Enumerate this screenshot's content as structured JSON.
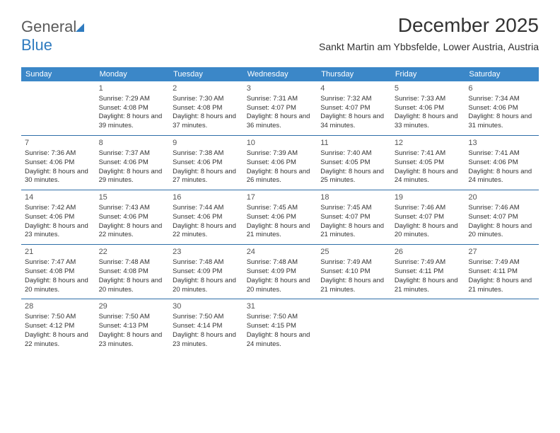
{
  "logo": {
    "text1": "General",
    "text2": "Blue"
  },
  "header": {
    "month": "December 2025",
    "location": "Sankt Martin am Ybbsfelde, Lower Austria, Austria"
  },
  "styling": {
    "header_bg": "#3b87c8",
    "header_fg": "#ffffff",
    "row_border": "#2f6fa8",
    "text_color": "#333333",
    "daynum_color": "#555555",
    "month_fontsize": 28,
    "location_fontsize": 14,
    "dayhead_fontsize": 11,
    "cell_fontsize": 9.5
  },
  "dayNames": [
    "Sunday",
    "Monday",
    "Tuesday",
    "Wednesday",
    "Thursday",
    "Friday",
    "Saturday"
  ],
  "firstDayIndex": 1,
  "days": [
    {
      "n": 1,
      "sr": "7:29 AM",
      "ss": "4:08 PM",
      "dl": "8 hours and 39 minutes."
    },
    {
      "n": 2,
      "sr": "7:30 AM",
      "ss": "4:08 PM",
      "dl": "8 hours and 37 minutes."
    },
    {
      "n": 3,
      "sr": "7:31 AM",
      "ss": "4:07 PM",
      "dl": "8 hours and 36 minutes."
    },
    {
      "n": 4,
      "sr": "7:32 AM",
      "ss": "4:07 PM",
      "dl": "8 hours and 34 minutes."
    },
    {
      "n": 5,
      "sr": "7:33 AM",
      "ss": "4:06 PM",
      "dl": "8 hours and 33 minutes."
    },
    {
      "n": 6,
      "sr": "7:34 AM",
      "ss": "4:06 PM",
      "dl": "8 hours and 31 minutes."
    },
    {
      "n": 7,
      "sr": "7:36 AM",
      "ss": "4:06 PM",
      "dl": "8 hours and 30 minutes."
    },
    {
      "n": 8,
      "sr": "7:37 AM",
      "ss": "4:06 PM",
      "dl": "8 hours and 29 minutes."
    },
    {
      "n": 9,
      "sr": "7:38 AM",
      "ss": "4:06 PM",
      "dl": "8 hours and 27 minutes."
    },
    {
      "n": 10,
      "sr": "7:39 AM",
      "ss": "4:06 PM",
      "dl": "8 hours and 26 minutes."
    },
    {
      "n": 11,
      "sr": "7:40 AM",
      "ss": "4:05 PM",
      "dl": "8 hours and 25 minutes."
    },
    {
      "n": 12,
      "sr": "7:41 AM",
      "ss": "4:05 PM",
      "dl": "8 hours and 24 minutes."
    },
    {
      "n": 13,
      "sr": "7:41 AM",
      "ss": "4:06 PM",
      "dl": "8 hours and 24 minutes."
    },
    {
      "n": 14,
      "sr": "7:42 AM",
      "ss": "4:06 PM",
      "dl": "8 hours and 23 minutes."
    },
    {
      "n": 15,
      "sr": "7:43 AM",
      "ss": "4:06 PM",
      "dl": "8 hours and 22 minutes."
    },
    {
      "n": 16,
      "sr": "7:44 AM",
      "ss": "4:06 PM",
      "dl": "8 hours and 22 minutes."
    },
    {
      "n": 17,
      "sr": "7:45 AM",
      "ss": "4:06 PM",
      "dl": "8 hours and 21 minutes."
    },
    {
      "n": 18,
      "sr": "7:45 AM",
      "ss": "4:07 PM",
      "dl": "8 hours and 21 minutes."
    },
    {
      "n": 19,
      "sr": "7:46 AM",
      "ss": "4:07 PM",
      "dl": "8 hours and 20 minutes."
    },
    {
      "n": 20,
      "sr": "7:46 AM",
      "ss": "4:07 PM",
      "dl": "8 hours and 20 minutes."
    },
    {
      "n": 21,
      "sr": "7:47 AM",
      "ss": "4:08 PM",
      "dl": "8 hours and 20 minutes."
    },
    {
      "n": 22,
      "sr": "7:48 AM",
      "ss": "4:08 PM",
      "dl": "8 hours and 20 minutes."
    },
    {
      "n": 23,
      "sr": "7:48 AM",
      "ss": "4:09 PM",
      "dl": "8 hours and 20 minutes."
    },
    {
      "n": 24,
      "sr": "7:48 AM",
      "ss": "4:09 PM",
      "dl": "8 hours and 20 minutes."
    },
    {
      "n": 25,
      "sr": "7:49 AM",
      "ss": "4:10 PM",
      "dl": "8 hours and 21 minutes."
    },
    {
      "n": 26,
      "sr": "7:49 AM",
      "ss": "4:11 PM",
      "dl": "8 hours and 21 minutes."
    },
    {
      "n": 27,
      "sr": "7:49 AM",
      "ss": "4:11 PM",
      "dl": "8 hours and 21 minutes."
    },
    {
      "n": 28,
      "sr": "7:50 AM",
      "ss": "4:12 PM",
      "dl": "8 hours and 22 minutes."
    },
    {
      "n": 29,
      "sr": "7:50 AM",
      "ss": "4:13 PM",
      "dl": "8 hours and 23 minutes."
    },
    {
      "n": 30,
      "sr": "7:50 AM",
      "ss": "4:14 PM",
      "dl": "8 hours and 23 minutes."
    },
    {
      "n": 31,
      "sr": "7:50 AM",
      "ss": "4:15 PM",
      "dl": "8 hours and 24 minutes."
    }
  ],
  "labels": {
    "sunrise": "Sunrise:",
    "sunset": "Sunset:",
    "daylight": "Daylight:"
  }
}
